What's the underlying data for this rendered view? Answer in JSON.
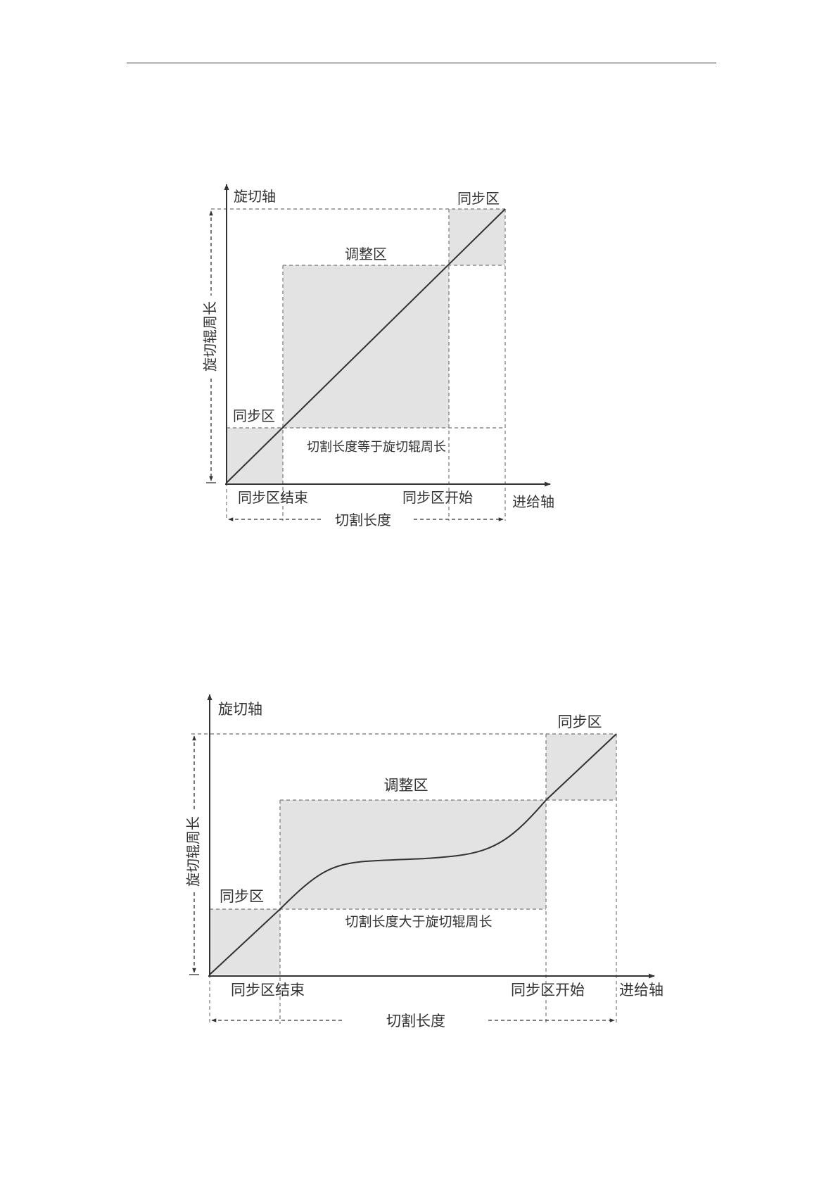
{
  "colors": {
    "line": "#333333",
    "zone": "#e3e3e3",
    "dash": "#8a8a8a",
    "page": "#ffffff"
  },
  "diagram1": {
    "y_axis": "旋切轴",
    "x_axis": "进给轴",
    "y_dimension": "旋切辊周长",
    "x_dimension": "切割长度",
    "sync_zone_top": "同步区",
    "sync_zone_bottom": "同步区",
    "adjust_zone": "调整区",
    "note": "切割长度等于旋切辊周长",
    "sync_end": "同步区结束",
    "sync_start": "同步区开始"
  },
  "diagram2": {
    "y_axis": "旋切轴",
    "x_axis": "进给轴",
    "y_dimension": "旋切辊周长",
    "x_dimension": "切割长度",
    "sync_zone_top": "同步区",
    "sync_zone_bottom": "同步区",
    "adjust_zone": "调整区",
    "note": "切割长度大于旋切辊周长",
    "sync_end": "同步区结束",
    "sync_start": "同步区开始"
  }
}
